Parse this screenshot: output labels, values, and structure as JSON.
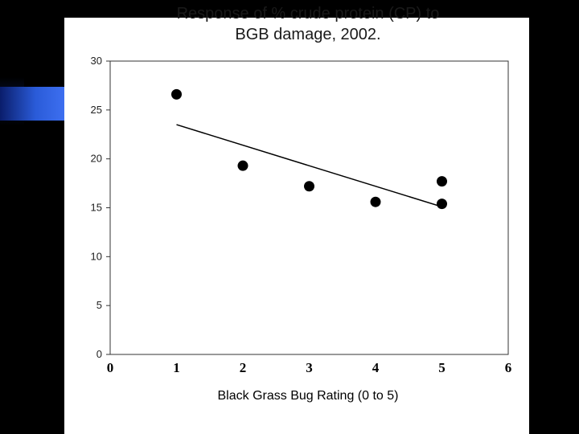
{
  "chart_data": {
    "type": "scatter",
    "title_lines": [
      "Response of % crude protein (CP) to",
      "BGB damage, 2002."
    ],
    "xlabel": "Black Grass Bug Rating (0 to 5)",
    "ylabel": "",
    "xlim": [
      0,
      6
    ],
    "ylim": [
      0,
      30
    ],
    "x_ticks": [
      "0",
      "1",
      "2",
      "3",
      "4",
      "5",
      "6"
    ],
    "y_ticks": [
      "0",
      "5",
      "10",
      "15",
      "20",
      "25",
      "30"
    ],
    "points": [
      {
        "x": 1,
        "y": 26.6
      },
      {
        "x": 2,
        "y": 19.3
      },
      {
        "x": 3,
        "y": 17.2
      },
      {
        "x": 4,
        "y": 15.6
      },
      {
        "x": 5,
        "y": 17.7
      },
      {
        "x": 5,
        "y": 15.4
      }
    ],
    "trendline": {
      "x": [
        1,
        5
      ],
      "y": [
        23.5,
        15.1
      ]
    },
    "grid": false,
    "marker_color": "#000000",
    "line_color": "#000000"
  }
}
